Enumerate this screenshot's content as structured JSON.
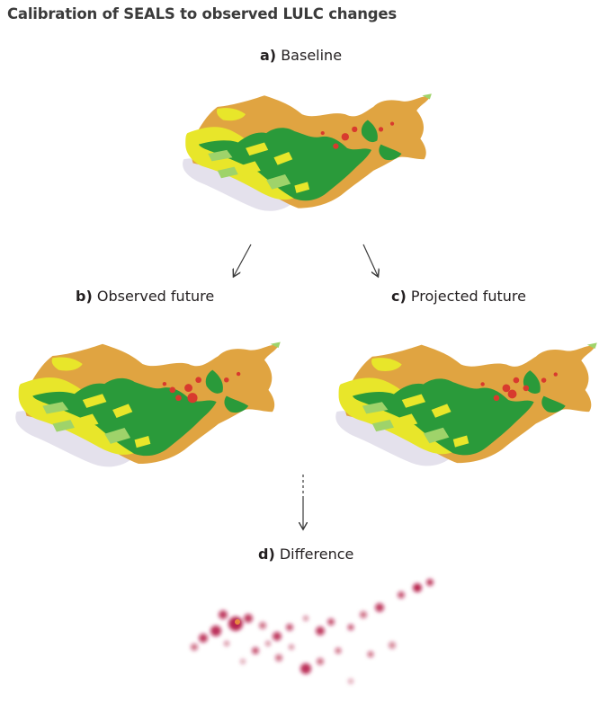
{
  "title": "Calibration of SEALS to observed LULC changes",
  "panels": {
    "a": {
      "letter": "a)",
      "name": "Baseline"
    },
    "b": {
      "letter": "b)",
      "name": "Observed future"
    },
    "c": {
      "letter": "c)",
      "name": "Projected future"
    },
    "d": {
      "letter": "d)",
      "name": "Difference"
    }
  },
  "colors": {
    "grassland": "#e0a441",
    "forest": "#2a9a3a",
    "cropland": "#e8e62a",
    "light_green": "#9fd36a",
    "bare": "#e4e1ec",
    "urban": "#d83a2e",
    "difference": "#b0123e",
    "arrow": "#3a3a3a"
  }
}
